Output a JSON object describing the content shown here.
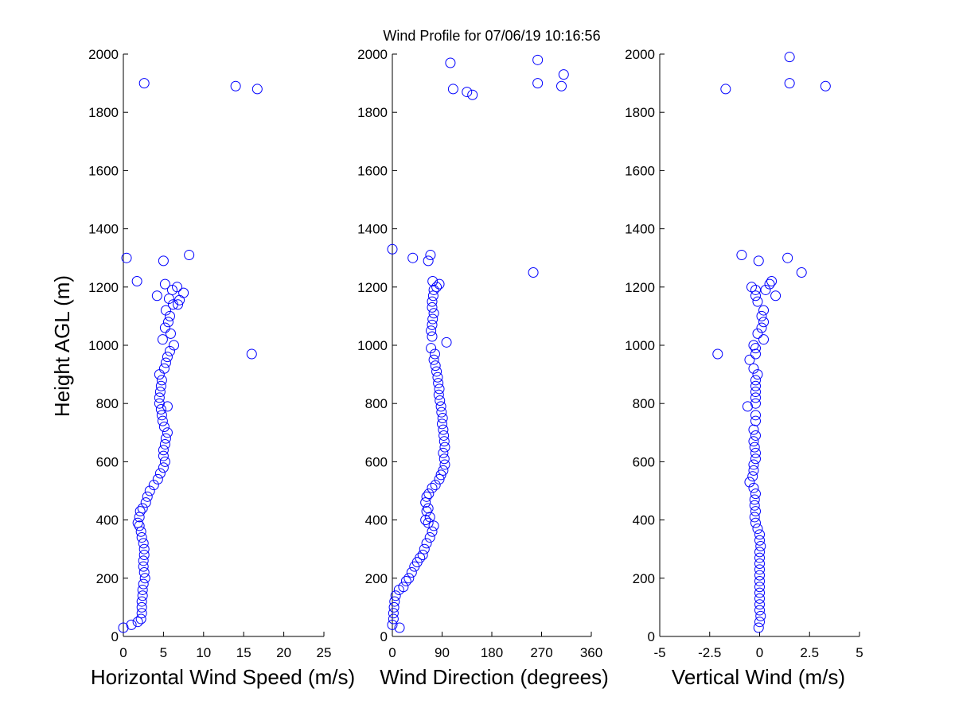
{
  "figure": {
    "title": "Wind Profile for  07/06/19 10:16:56",
    "ylabel": "Height AGL (m)",
    "marker_color": "#0000ff"
  },
  "chart_data": [
    {
      "type": "scatter",
      "xlabel": "Horizontal Wind Speed (m/s)",
      "ylabel": "Height AGL (m)",
      "xlim": [
        0,
        25
      ],
      "ylim": [
        0,
        2000
      ],
      "xticks": [
        0,
        5,
        10,
        15,
        20,
        25
      ],
      "xtick_labels": [
        "0",
        "5",
        "10",
        "15",
        "20",
        "25"
      ],
      "yticks": [
        0,
        200,
        400,
        600,
        800,
        1000,
        1200,
        1400,
        1600,
        1800,
        2000
      ],
      "ytick_labels": [
        "0",
        "200",
        "400",
        "600",
        "800",
        "1000",
        "1200",
        "1400",
        "1600",
        "1800",
        "2000"
      ],
      "marker": "circle",
      "grid": false,
      "points": [
        [
          0,
          30
        ],
        [
          1,
          40
        ],
        [
          1.8,
          50
        ],
        [
          2.2,
          60
        ],
        [
          2.3,
          80
        ],
        [
          2.3,
          100
        ],
        [
          2.3,
          120
        ],
        [
          2.4,
          140
        ],
        [
          2.4,
          160
        ],
        [
          2.5,
          180
        ],
        [
          2.7,
          200
        ],
        [
          2.6,
          220
        ],
        [
          2.5,
          240
        ],
        [
          2.5,
          260
        ],
        [
          2.6,
          280
        ],
        [
          2.6,
          300
        ],
        [
          2.5,
          320
        ],
        [
          2.3,
          340
        ],
        [
          2.2,
          360
        ],
        [
          2.0,
          380
        ],
        [
          1.8,
          390
        ],
        [
          2.0,
          410
        ],
        [
          2.1,
          430
        ],
        [
          2.4,
          440
        ],
        [
          2.8,
          460
        ],
        [
          3.0,
          480
        ],
        [
          3.3,
          500
        ],
        [
          3.8,
          520
        ],
        [
          4.3,
          540
        ],
        [
          4.6,
          560
        ],
        [
          5.0,
          580
        ],
        [
          5.2,
          600
        ],
        [
          5.0,
          620
        ],
        [
          5.0,
          640
        ],
        [
          5.2,
          660
        ],
        [
          5.3,
          680
        ],
        [
          5.5,
          700
        ],
        [
          5.1,
          720
        ],
        [
          4.9,
          740
        ],
        [
          4.8,
          760
        ],
        [
          4.7,
          780
        ],
        [
          5.5,
          790
        ],
        [
          4.5,
          800
        ],
        [
          4.5,
          820
        ],
        [
          4.6,
          840
        ],
        [
          4.7,
          860
        ],
        [
          4.8,
          880
        ],
        [
          4.5,
          900
        ],
        [
          5.1,
          920
        ],
        [
          5.3,
          940
        ],
        [
          5.5,
          960
        ],
        [
          5.8,
          980
        ],
        [
          6.3,
          1000
        ],
        [
          4.9,
          1020
        ],
        [
          5.9,
          1040
        ],
        [
          5.2,
          1060
        ],
        [
          5.6,
          1080
        ],
        [
          5.8,
          1100
        ],
        [
          5.3,
          1120
        ],
        [
          6.2,
          1140
        ],
        [
          5.7,
          1160
        ],
        [
          4.2,
          1170
        ],
        [
          7.5,
          1180
        ],
        [
          6.1,
          1190
        ],
        [
          6.7,
          1200
        ],
        [
          5.2,
          1210
        ],
        [
          1.7,
          1220
        ],
        [
          5.0,
          1290
        ],
        [
          0.4,
          1300
        ],
        [
          8.2,
          1310
        ],
        [
          16.0,
          970
        ],
        [
          14.0,
          1890
        ],
        [
          16.7,
          1880
        ],
        [
          2.6,
          1900
        ],
        [
          6.8,
          1140
        ],
        [
          7.0,
          1155
        ]
      ]
    },
    {
      "type": "scatter",
      "xlabel": "Wind Direction (degrees)",
      "ylabel": "",
      "xlim": [
        0,
        360
      ],
      "ylim": [
        0,
        2000
      ],
      "xticks": [
        0,
        90,
        180,
        270,
        360
      ],
      "xtick_labels": [
        "0",
        "90",
        "180",
        "270",
        "360"
      ],
      "yticks": [
        0,
        200,
        400,
        600,
        800,
        1000,
        1200,
        1400,
        1600,
        1800,
        2000
      ],
      "ytick_labels": [
        "0",
        "200",
        "400",
        "600",
        "800",
        "1000",
        "1200",
        "1400",
        "1600",
        "1800",
        "2000"
      ],
      "marker": "circle",
      "grid": false,
      "points": [
        [
          13,
          30
        ],
        [
          0,
          40
        ],
        [
          2,
          60
        ],
        [
          2,
          80
        ],
        [
          3,
          100
        ],
        [
          4,
          120
        ],
        [
          6,
          140
        ],
        [
          12,
          160
        ],
        [
          20,
          170
        ],
        [
          25,
          190
        ],
        [
          30,
          200
        ],
        [
          35,
          220
        ],
        [
          40,
          240
        ],
        [
          45,
          255
        ],
        [
          50,
          270
        ],
        [
          55,
          280
        ],
        [
          58,
          300
        ],
        [
          62,
          320
        ],
        [
          68,
          340
        ],
        [
          72,
          360
        ],
        [
          75,
          380
        ],
        [
          65,
          390
        ],
        [
          60,
          400
        ],
        [
          68,
          410
        ],
        [
          62,
          430
        ],
        [
          65,
          440
        ],
        [
          60,
          460
        ],
        [
          62,
          480
        ],
        [
          66,
          490
        ],
        [
          72,
          510
        ],
        [
          78,
          520
        ],
        [
          85,
          540
        ],
        [
          88,
          555
        ],
        [
          92,
          570
        ],
        [
          95,
          590
        ],
        [
          94,
          610
        ],
        [
          92,
          630
        ],
        [
          95,
          650
        ],
        [
          94,
          670
        ],
        [
          93,
          690
        ],
        [
          92,
          710
        ],
        [
          90,
          730
        ],
        [
          91,
          750
        ],
        [
          89,
          770
        ],
        [
          88,
          790
        ],
        [
          86,
          810
        ],
        [
          84,
          830
        ],
        [
          85,
          850
        ],
        [
          83,
          870
        ],
        [
          82,
          890
        ],
        [
          80,
          910
        ],
        [
          78,
          930
        ],
        [
          75,
          950
        ],
        [
          77,
          970
        ],
        [
          70,
          990
        ],
        [
          98,
          1010
        ],
        [
          72,
          1030
        ],
        [
          70,
          1050
        ],
        [
          72,
          1070
        ],
        [
          73,
          1090
        ],
        [
          75,
          1110
        ],
        [
          72,
          1130
        ],
        [
          72,
          1150
        ],
        [
          74,
          1170
        ],
        [
          75,
          1190
        ],
        [
          80,
          1200
        ],
        [
          85,
          1210
        ],
        [
          73,
          1220
        ],
        [
          65,
          1290
        ],
        [
          37,
          1300
        ],
        [
          69,
          1310
        ],
        [
          0,
          1330
        ],
        [
          255,
          1250
        ],
        [
          110,
          1880
        ],
        [
          135,
          1870
        ],
        [
          145,
          1860
        ],
        [
          105,
          1970
        ],
        [
          263,
          1980
        ],
        [
          310,
          1930
        ],
        [
          263,
          1900
        ],
        [
          306,
          1890
        ]
      ]
    },
    {
      "type": "scatter",
      "xlabel": "Vertical Wind (m/s)",
      "ylabel": "",
      "xlim": [
        -5,
        5
      ],
      "ylim": [
        0,
        2000
      ],
      "xticks": [
        -5,
        -2.5,
        0,
        2.5,
        5
      ],
      "xtick_labels": [
        "-5",
        "-2.5",
        "0",
        "2.5",
        "5"
      ],
      "yticks": [
        0,
        200,
        400,
        600,
        800,
        1000,
        1200,
        1400,
        1600,
        1800,
        2000
      ],
      "ytick_labels": [
        "0",
        "200",
        "400",
        "600",
        "800",
        "1000",
        "1200",
        "1400",
        "1600",
        "1800",
        "2000"
      ],
      "marker": "circle",
      "grid": false,
      "points": [
        [
          -0.05,
          30
        ],
        [
          0,
          50
        ],
        [
          0.05,
          70
        ],
        [
          0,
          90
        ],
        [
          0,
          110
        ],
        [
          0,
          130
        ],
        [
          0,
          150
        ],
        [
          0,
          170
        ],
        [
          0,
          190
        ],
        [
          0,
          210
        ],
        [
          0,
          230
        ],
        [
          0,
          250
        ],
        [
          0,
          270
        ],
        [
          0,
          290
        ],
        [
          0.05,
          310
        ],
        [
          0,
          330
        ],
        [
          0,
          350
        ],
        [
          -0.1,
          370
        ],
        [
          -0.2,
          390
        ],
        [
          -0.25,
          410
        ],
        [
          -0.2,
          430
        ],
        [
          -0.25,
          450
        ],
        [
          -0.25,
          470
        ],
        [
          -0.2,
          490
        ],
        [
          -0.3,
          510
        ],
        [
          -0.5,
          530
        ],
        [
          -0.35,
          550
        ],
        [
          -0.3,
          570
        ],
        [
          -0.3,
          590
        ],
        [
          -0.2,
          610
        ],
        [
          -0.2,
          630
        ],
        [
          -0.25,
          650
        ],
        [
          -0.3,
          670
        ],
        [
          -0.2,
          690
        ],
        [
          -0.3,
          710
        ],
        [
          -0.2,
          740
        ],
        [
          -0.2,
          760
        ],
        [
          -0.6,
          790
        ],
        [
          -0.2,
          800
        ],
        [
          -0.2,
          820
        ],
        [
          -0.2,
          840
        ],
        [
          -0.2,
          860
        ],
        [
          -0.2,
          880
        ],
        [
          -0.1,
          900
        ],
        [
          -0.3,
          920
        ],
        [
          -0.5,
          950
        ],
        [
          -0.2,
          970
        ],
        [
          -0.2,
          990
        ],
        [
          -0.3,
          1000
        ],
        [
          0.2,
          1020
        ],
        [
          -0.1,
          1040
        ],
        [
          0.1,
          1060
        ],
        [
          0.2,
          1080
        ],
        [
          0.1,
          1100
        ],
        [
          0.2,
          1120
        ],
        [
          -0.1,
          1150
        ],
        [
          -0.2,
          1170
        ],
        [
          -0.2,
          1190
        ],
        [
          0.3,
          1190
        ],
        [
          0.5,
          1210
        ],
        [
          0.6,
          1220
        ],
        [
          -2.1,
          970
        ],
        [
          -0.4,
          1200
        ],
        [
          0.8,
          1170
        ],
        [
          -0.05,
          1290
        ],
        [
          -0.9,
          1310
        ],
        [
          1.4,
          1300
        ],
        [
          2.1,
          1250
        ],
        [
          -1.7,
          1880
        ],
        [
          1.5,
          1900
        ],
        [
          3.3,
          1890
        ],
        [
          1.5,
          1990
        ]
      ]
    }
  ]
}
